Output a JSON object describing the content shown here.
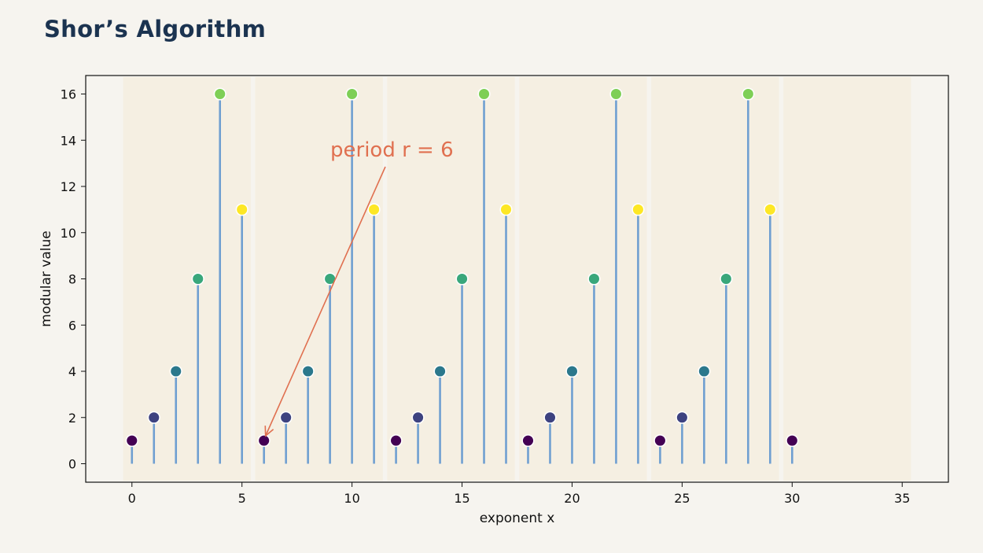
{
  "title": "Shor’s Algorithm",
  "chart_data": {
    "type": "stem",
    "xlabel": "exponent x",
    "ylabel": "modular value",
    "xlim": [
      -2.1,
      37.1
    ],
    "ylim": [
      -0.8,
      16.8
    ],
    "xticks": [
      0,
      5,
      10,
      15,
      20,
      25,
      30,
      35
    ],
    "yticks": [
      0,
      2,
      4,
      6,
      8,
      10,
      12,
      14,
      16
    ],
    "x": [
      0,
      1,
      2,
      3,
      4,
      5,
      6,
      7,
      8,
      9,
      10,
      11,
      12,
      13,
      14,
      15,
      16,
      17,
      18,
      19,
      20,
      21,
      22,
      23,
      24,
      25,
      26,
      27,
      28,
      29,
      30
    ],
    "y": [
      1,
      2,
      4,
      8,
      16,
      11,
      1,
      2,
      4,
      8,
      16,
      11,
      1,
      2,
      4,
      8,
      16,
      11,
      1,
      2,
      4,
      8,
      16,
      11,
      1,
      2,
      4,
      8,
      16,
      11,
      1
    ],
    "period": 6,
    "period_bands": [
      [
        -0.4,
        5.4
      ],
      [
        5.6,
        11.4
      ],
      [
        11.6,
        17.4
      ],
      [
        17.6,
        23.4
      ],
      [
        23.6,
        29.4
      ],
      [
        29.6,
        35.4
      ]
    ],
    "band_color": "#f5efe2",
    "stem_color": "#6f9fd1",
    "annotation": {
      "text": "period r = 6",
      "color": "#e07050",
      "points_to": [
        6,
        1
      ]
    },
    "colormap": "viridis",
    "grid": false
  }
}
